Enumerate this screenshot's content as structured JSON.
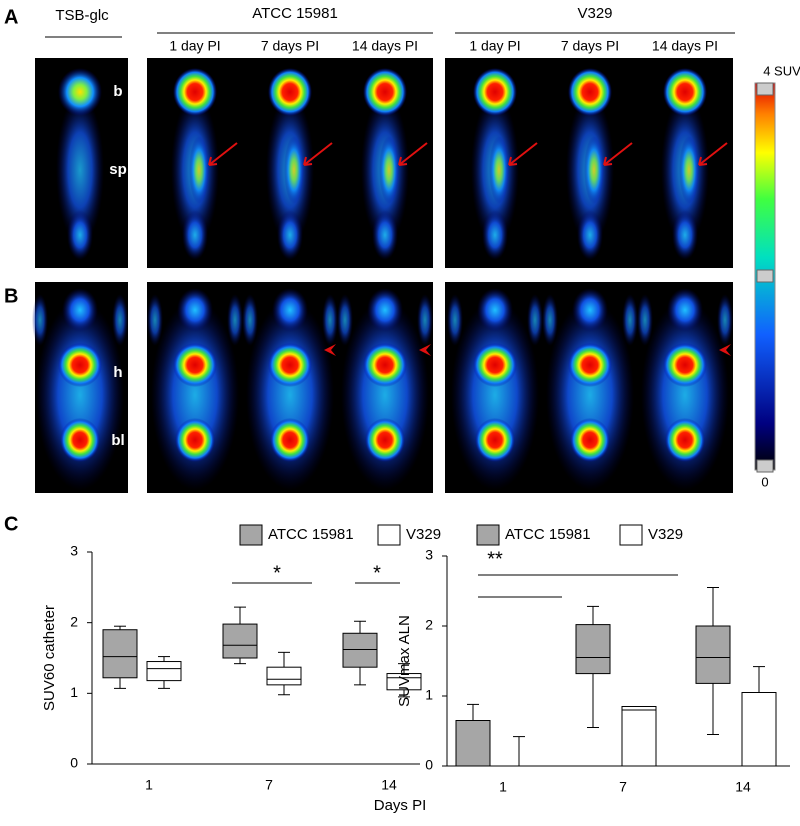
{
  "figure": {
    "panels": [
      "A",
      "B",
      "C"
    ],
    "column_headers": {
      "control": "TSB-glc",
      "strain1": "ATCC 15981",
      "strain2": "V329"
    },
    "timepoints": [
      "1 day PI",
      "7 days PI",
      "14 days PI"
    ],
    "organ_labels": {
      "brain": "b",
      "spine": "sp",
      "heart": "h",
      "bladder": "bl"
    },
    "colorbar": {
      "max_label": "4 SUV",
      "min_label": "0"
    },
    "xlabel": "Days PI"
  },
  "chart_data": [
    {
      "type": "box",
      "ylabel": "SUV60 catheter",
      "categories": [
        "1",
        "7",
        "14"
      ],
      "ylim": [
        0,
        3
      ],
      "yticks": [
        0,
        1,
        2,
        3
      ],
      "series": [
        {
          "name": "ATCC 15981",
          "color": "#a6a6a6",
          "values": [
            [
              1.07,
              1.22,
              1.52,
              1.9,
              1.95
            ],
            [
              1.42,
              1.5,
              1.68,
              1.98,
              2.22
            ],
            [
              1.12,
              1.37,
              1.62,
              1.85,
              2.02
            ]
          ]
        },
        {
          "name": "V329",
          "color": "#ffffff",
          "values": [
            [
              1.07,
              1.18,
              1.35,
              1.45,
              1.52
            ],
            [
              0.98,
              1.12,
              1.2,
              1.37,
              1.58
            ],
            [
              0.95,
              1.05,
              1.22,
              1.28,
              1.42
            ]
          ]
        }
      ],
      "annotations": [
        "*",
        "*"
      ]
    },
    {
      "type": "box",
      "ylabel": "SUVmax ALN",
      "categories": [
        "1",
        "7",
        "14"
      ],
      "ylim": [
        0,
        3
      ],
      "yticks": [
        0,
        1,
        2,
        3
      ],
      "series": [
        {
          "name": "ATCC 15981",
          "color": "#a6a6a6",
          "values": [
            [
              0,
              0,
              0,
              0.65,
              0.88
            ],
            [
              0.55,
              1.32,
              1.55,
              2.02,
              2.28
            ],
            [
              0.45,
              1.18,
              1.55,
              2.0,
              2.55
            ]
          ]
        },
        {
          "name": "V329",
          "color": "#ffffff",
          "values": [
            [
              0,
              0,
              0,
              0,
              0.42
            ],
            [
              0,
              0,
              0.8,
              0.85,
              0.85
            ],
            [
              0,
              0,
              0,
              1.05,
              1.42
            ]
          ]
        }
      ],
      "annotations": [
        "**"
      ]
    }
  ]
}
